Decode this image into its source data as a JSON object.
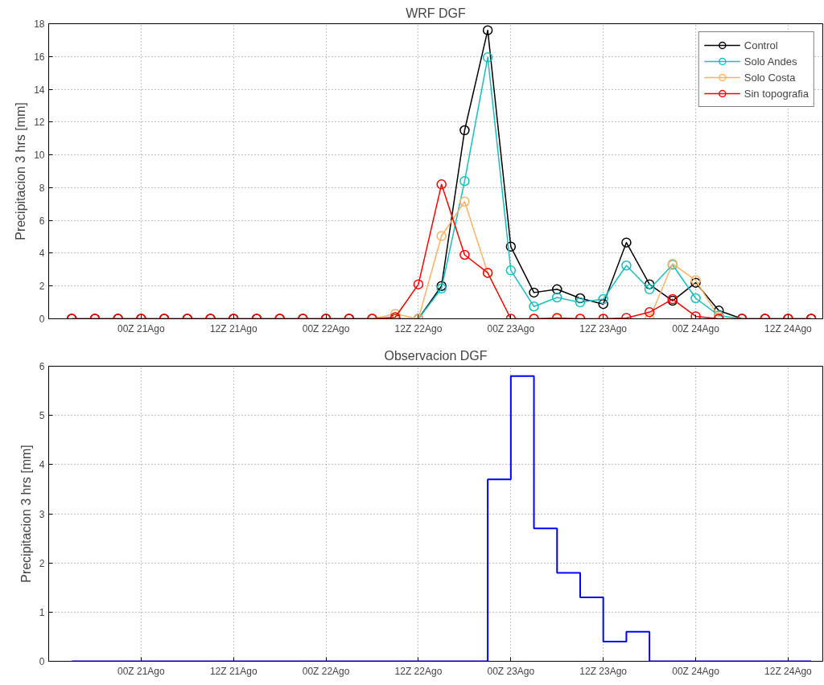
{
  "chart_data": [
    {
      "type": "line",
      "title": "WRF DGF",
      "ylabel": "Precipitacion 3 hrs [mm]",
      "categories": [
        null,
        null,
        null,
        "00Z 21Ago",
        null,
        null,
        null,
        "12Z 21Ago",
        null,
        null,
        null,
        "00Z 22Ago",
        null,
        null,
        null,
        "12Z 22Ago",
        null,
        null,
        null,
        "00Z 23Ago",
        null,
        null,
        null,
        "12Z 23Ago",
        null,
        null,
        null,
        "00Z 24Ago",
        null,
        null,
        null,
        "12Z 24Ago",
        null
      ],
      "ylim": [
        0,
        18
      ],
      "yticks": [
        0,
        2,
        4,
        6,
        8,
        10,
        12,
        14,
        16,
        18
      ],
      "grid": true,
      "legend": "top right",
      "marker": "circle",
      "series": [
        {
          "name": "Control",
          "color": "#000000",
          "values": [
            0,
            0,
            0,
            0,
            0,
            0,
            0,
            0,
            0,
            0,
            0,
            0,
            0,
            0,
            0,
            0,
            2.0,
            11.5,
            17.6,
            4.4,
            1.6,
            1.8,
            1.25,
            0.9,
            4.65,
            2.1,
            1.1,
            2.2,
            0.5,
            0,
            0,
            0,
            0
          ]
        },
        {
          "name": "Solo Andes",
          "color": "#17bfbf",
          "values": [
            null,
            null,
            null,
            null,
            null,
            null,
            null,
            null,
            null,
            null,
            null,
            null,
            null,
            null,
            null,
            0,
            1.85,
            8.4,
            15.95,
            2.95,
            0.75,
            1.3,
            1.0,
            1.2,
            3.25,
            1.8,
            3.3,
            1.25,
            0.2,
            0,
            null,
            null,
            null
          ]
        },
        {
          "name": "Solo Costa",
          "color": "#ffb266",
          "values": [
            null,
            null,
            null,
            null,
            null,
            null,
            null,
            null,
            null,
            null,
            null,
            null,
            null,
            0,
            0.3,
            0,
            5.05,
            7.15,
            2.8,
            null,
            0,
            0,
            0,
            0,
            null,
            0,
            3.35,
            2.35,
            0.1,
            null,
            null,
            null,
            null
          ]
        },
        {
          "name": "Sin topografia",
          "color": "#ff0000",
          "values": [
            0,
            0,
            0,
            0,
            0,
            0,
            0,
            0,
            0,
            0,
            0,
            0,
            0,
            0,
            0.1,
            2.1,
            8.2,
            3.9,
            2.8,
            0,
            0,
            0.05,
            0,
            0,
            0.05,
            0.4,
            1.2,
            0.15,
            0,
            0,
            0,
            0,
            0
          ]
        }
      ]
    },
    {
      "type": "step",
      "title": "Observacion DGF",
      "ylabel": "Precipitacion 3 hrs [mm]",
      "categories": [
        null,
        null,
        null,
        "00Z 21Ago",
        null,
        null,
        null,
        "12Z 21Ago",
        null,
        null,
        null,
        "00Z 22Ago",
        null,
        null,
        null,
        "12Z 22Ago",
        null,
        null,
        null,
        "00Z 23Ago",
        null,
        null,
        null,
        "12Z 23Ago",
        null,
        null,
        null,
        "00Z 24Ago",
        null,
        null,
        null,
        "12Z 24Ago",
        null
      ],
      "ylim": [
        0,
        6
      ],
      "yticks": [
        0,
        1,
        2,
        3,
        4,
        5,
        6
      ],
      "grid": true,
      "series": [
        {
          "color": "#0000ff",
          "values": [
            0,
            0,
            0,
            0,
            0,
            0,
            0,
            0,
            0,
            0,
            0,
            0,
            0,
            0,
            0,
            0,
            0,
            0,
            3.7,
            5.8,
            2.7,
            1.8,
            1.3,
            0.4,
            0.6,
            0,
            0,
            0,
            0,
            0,
            0,
            0,
            0
          ]
        }
      ]
    }
  ]
}
